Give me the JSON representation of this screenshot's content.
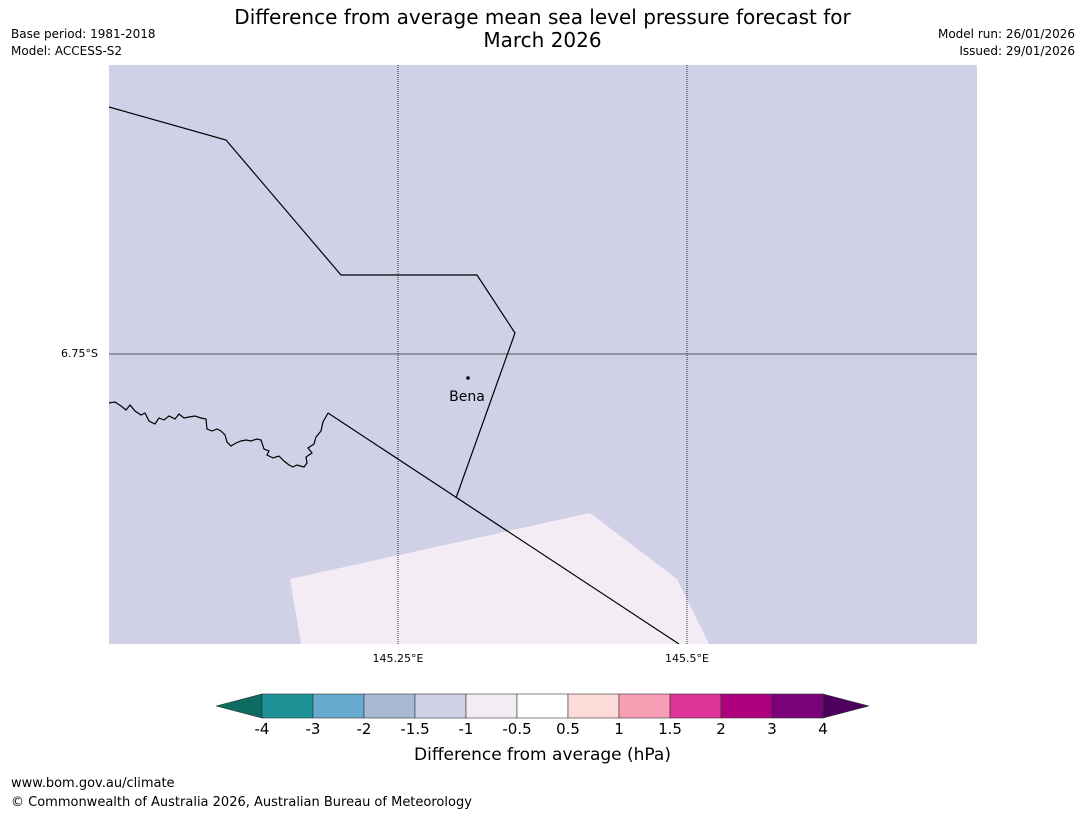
{
  "header": {
    "title_line1": "Difference from average mean sea level pressure forecast for",
    "title_line2": "March 2026",
    "base_period": "Base period: 1981-2018",
    "model": "Model: ACCESS-S2",
    "model_run": "Model run: 26/01/2026",
    "issued": "Issued: 29/01/2026"
  },
  "map": {
    "lat_label": "6.75°S",
    "lon_labels": [
      "145.25°E",
      "145.5°E"
    ],
    "place_name": "Bena",
    "colors": {
      "background_anomaly": "#d0d1e6",
      "light_anomaly": "#f4ecf5",
      "boundary": "#000000",
      "latitude_line": "#555555"
    }
  },
  "colorbar": {
    "title": "Difference from average (hPa)",
    "tick_labels": [
      "-4",
      "-3",
      "-2",
      "-1.5",
      "-1",
      "-0.5",
      "0.5",
      "1",
      "1.5",
      "2",
      "3",
      "4"
    ],
    "colors": [
      "#0e6b61",
      "#1d9196",
      "#67a9cf",
      "#a9b9d4",
      "#d0d1e6",
      "#f4ecf5",
      "#ffffff",
      "#fddbd9",
      "#f99fb5",
      "#dd3497",
      "#ae017e",
      "#7a0177",
      "#4d005d"
    ]
  },
  "footer": {
    "url": "www.bom.gov.au/climate",
    "copyright": "© Commonwealth of Australia 2026, Australian Bureau of Meteorology"
  }
}
